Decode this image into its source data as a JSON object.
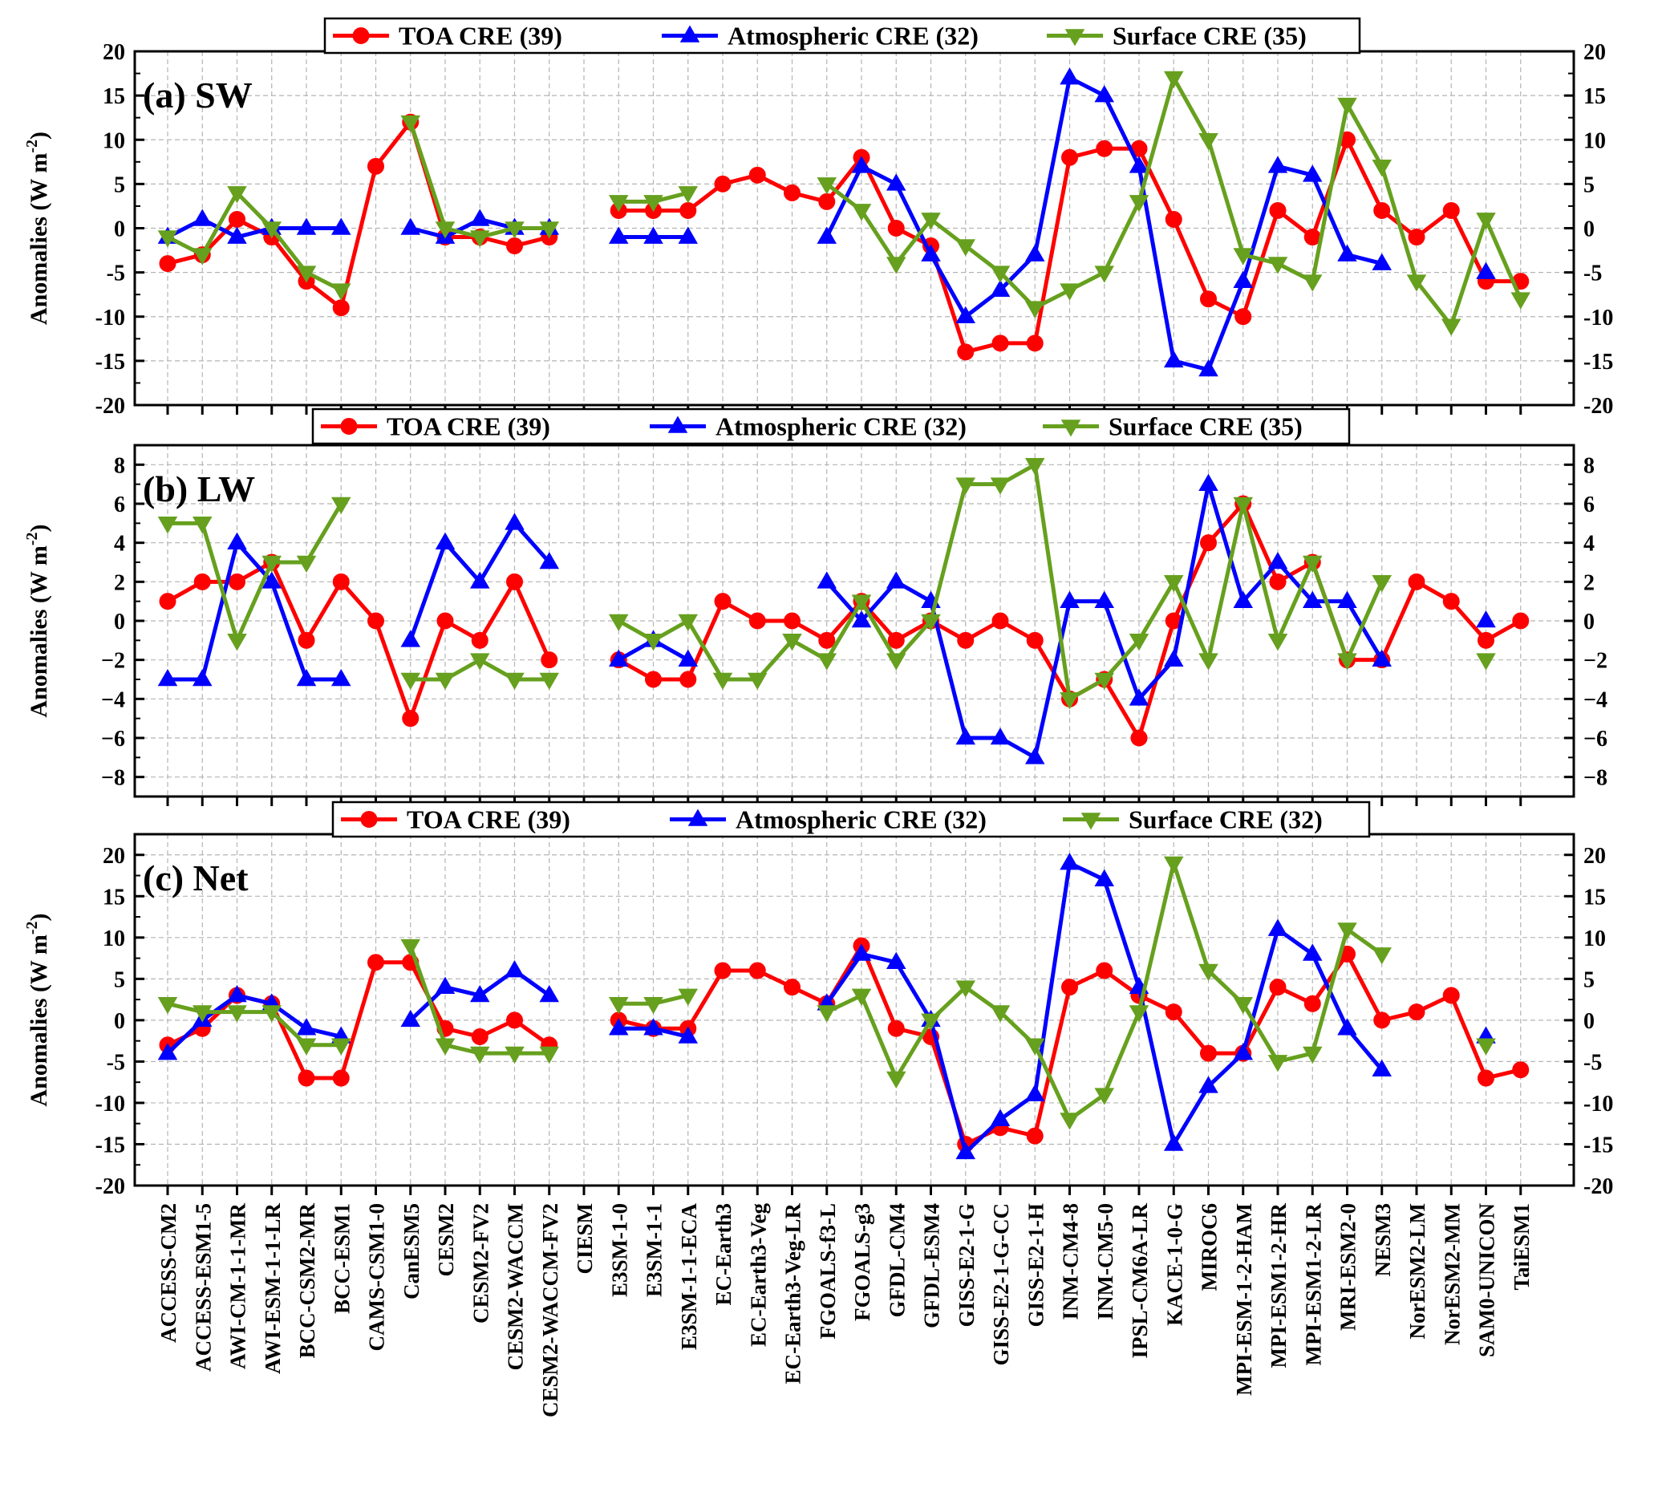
{
  "models": [
    "ACCESS-CM2",
    "ACCESS-ESM1-5",
    "AWI-CM-1-1-MR",
    "AWI-ESM-1-1-LR",
    "BCC-CSM2-MR",
    "BCC-ESM1",
    "CAMS-CSM1-0",
    "CanESM5",
    "CESM2",
    "CESM2-FV2",
    "CESM2-WACCM",
    "CESM2-WACCM-FV2",
    "CIESM",
    "E3SM-1-0",
    "E3SM-1-1",
    "E3SM-1-1-ECA",
    "EC-Earth3",
    "EC-Earth3-Veg",
    "EC-Earth3-Veg-LR",
    "FGOALS-f3-L",
    "FGOALS-g3",
    "GFDL-CM4",
    "GFDL-ESM4",
    "GISS-E2-1-G",
    "GISS-E2-1-G-CC",
    "GISS-E2-1-H",
    "INM-CM4-8",
    "INM-CM5-0",
    "IPSL-CM6A-LR",
    "KACE-1-0-G",
    "MIROC6",
    "MPI-ESM-1-2-HAM",
    "MPI-ESM1-2-HR",
    "MPI-ESM1-2-LR",
    "MRI-ESM2-0",
    "NESM3",
    "NorESM2-LM",
    "NorESM2-MM",
    "SAM0-UNICON",
    "TaiESM1"
  ],
  "colors": {
    "toa": "#ff0000",
    "atm": "#0000ff",
    "sfc": "#66a01e",
    "grid": "#b4b4b4"
  },
  "chart_data": [
    {
      "type": "line",
      "panel_label": "(a) SW",
      "ylabel": "Anomalies (W m-2)",
      "ylim": [
        -20,
        20
      ],
      "yticks": [
        -20,
        -15,
        -10,
        -5,
        0,
        5,
        10,
        15,
        20
      ],
      "grid": true,
      "legend_position": "top-center",
      "series": [
        {
          "name": "TOA CRE (39)",
          "key": "toa",
          "marker": "circle",
          "values": [
            -4,
            -3,
            1,
            -1,
            -6,
            -9,
            7,
            12,
            -1,
            -1,
            -2,
            -1,
            null,
            2,
            2,
            2,
            5,
            6,
            4,
            3,
            8,
            0,
            -2,
            -14,
            -13,
            -13,
            8,
            9,
            9,
            1,
            -8,
            -10,
            2,
            -1,
            10,
            2,
            -1,
            2,
            -6,
            -6
          ]
        },
        {
          "name": "Atmospheric CRE (32)",
          "key": "atm",
          "marker": "triangle-up",
          "values": [
            -1,
            1,
            -1,
            0,
            0,
            0,
            null,
            0,
            -1,
            1,
            0,
            0,
            null,
            -1,
            -1,
            -1,
            null,
            null,
            null,
            -1,
            7,
            5,
            -3,
            -10,
            -7,
            -3,
            17,
            15,
            7,
            -15,
            -16,
            -6,
            7,
            6,
            -3,
            -4,
            null,
            null,
            -5,
            null
          ]
        },
        {
          "name": "Surface CRE (35)",
          "key": "sfc",
          "marker": "triangle-down",
          "values": [
            -1,
            -3,
            4,
            0,
            -5,
            -7,
            null,
            12,
            0,
            -1,
            0,
            0,
            null,
            3,
            3,
            4,
            null,
            null,
            null,
            5,
            2,
            -4,
            1,
            -2,
            -5,
            -9,
            -7,
            -5,
            3,
            17,
            10,
            -3,
            -4,
            -6,
            14,
            7,
            -6,
            -11,
            1,
            -8
          ]
        }
      ]
    },
    {
      "type": "line",
      "panel_label": "(b) LW",
      "ylabel": "Anomalies (W m-2)",
      "ylim": [
        -9,
        9
      ],
      "yticks": [
        -8,
        -6,
        -4,
        -2,
        0,
        2,
        4,
        6,
        8
      ],
      "grid": true,
      "legend_position": "top-center",
      "series": [
        {
          "name": "TOA CRE (39)",
          "key": "toa",
          "marker": "circle",
          "values": [
            1,
            2,
            2,
            3,
            -1,
            2,
            0,
            -5,
            0,
            -1,
            2,
            -2,
            null,
            -2,
            -3,
            -3,
            1,
            0,
            0,
            -1,
            1,
            -1,
            0,
            -1,
            0,
            -1,
            -4,
            -3,
            -6,
            0,
            4,
            6,
            2,
            3,
            -2,
            -2,
            2,
            1,
            -1,
            0
          ]
        },
        {
          "name": "Atmospheric CRE (32)",
          "key": "atm",
          "marker": "triangle-up",
          "values": [
            -3,
            -3,
            4,
            2,
            -3,
            -3,
            null,
            -1,
            4,
            2,
            5,
            3,
            null,
            -2,
            -1,
            -2,
            null,
            null,
            null,
            2,
            0,
            2,
            1,
            -6,
            -6,
            -7,
            1,
            1,
            -4,
            -2,
            7,
            1,
            3,
            1,
            1,
            -2,
            null,
            null,
            0,
            null
          ]
        },
        {
          "name": "Surface CRE (35)",
          "key": "sfc",
          "marker": "triangle-down",
          "values": [
            5,
            5,
            -1,
            3,
            3,
            6,
            null,
            -3,
            -3,
            -2,
            -3,
            -3,
            null,
            0,
            -1,
            0,
            -3,
            -3,
            -1,
            -2,
            1,
            -2,
            0,
            7,
            7,
            8,
            -4,
            -3,
            -1,
            2,
            -2,
            6,
            -1,
            3,
            -2,
            2,
            null,
            null,
            -2,
            null
          ]
        }
      ]
    },
    {
      "type": "line",
      "panel_label": "(c) Net",
      "ylabel": "Anomalies (W m-2)",
      "ylim": [
        -20,
        22.5
      ],
      "yticks": [
        -20,
        -15,
        -10,
        -5,
        0,
        5,
        10,
        15,
        20
      ],
      "grid": true,
      "legend_position": "top-center",
      "series": [
        {
          "name": "TOA CRE (39)",
          "key": "toa",
          "marker": "circle",
          "values": [
            -3,
            -1,
            3,
            2,
            -7,
            -7,
            7,
            7,
            -1,
            -2,
            0,
            -3,
            null,
            0,
            -1,
            -1,
            6,
            6,
            4,
            2,
            9,
            -1,
            -2,
            -15,
            -13,
            -14,
            4,
            6,
            3,
            1,
            -4,
            -4,
            4,
            2,
            8,
            0,
            1,
            3,
            -7,
            -6
          ]
        },
        {
          "name": "Atmospheric CRE (32)",
          "key": "atm",
          "marker": "triangle-up",
          "values": [
            -4,
            0,
            3,
            2,
            -1,
            -2,
            null,
            0,
            4,
            3,
            6,
            3,
            null,
            -1,
            -1,
            -2,
            null,
            null,
            null,
            2,
            8,
            7,
            0,
            -16,
            -12,
            -9,
            19,
            17,
            4,
            -15,
            -8,
            -4,
            11,
            8,
            -1,
            -6,
            null,
            null,
            -2,
            null
          ]
        },
        {
          "name": "Surface CRE (32)",
          "key": "sfc",
          "marker": "triangle-down",
          "values": [
            2,
            1,
            1,
            1,
            -3,
            -3,
            null,
            9,
            -3,
            -4,
            -4,
            -4,
            null,
            2,
            2,
            3,
            null,
            null,
            null,
            1,
            3,
            -7,
            0,
            4,
            1,
            -3,
            -12,
            -9,
            1,
            19,
            6,
            2,
            -5,
            -4,
            11,
            8,
            null,
            null,
            -3,
            null
          ]
        }
      ]
    }
  ]
}
